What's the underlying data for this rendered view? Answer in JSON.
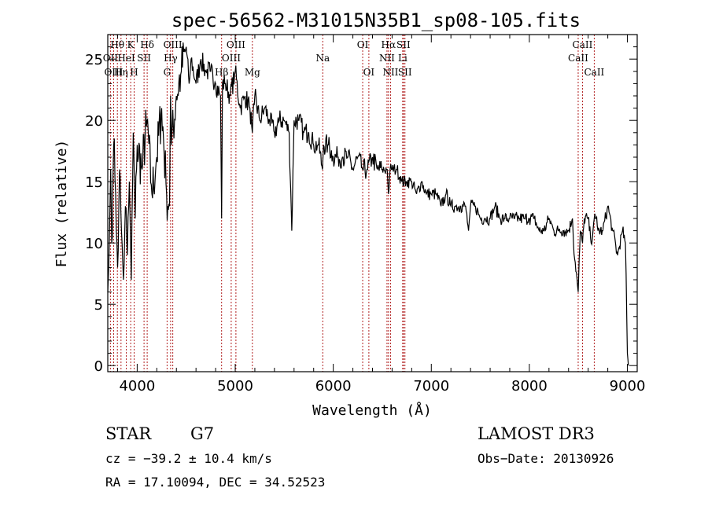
{
  "chart_data": {
    "type": "line",
    "title": "spec-56562-M31015N35B1_sp08-105.fits",
    "xlabel": "Wavelength (Å)",
    "ylabel": "Flux (relative)",
    "xlim": [
      3700,
      9100
    ],
    "ylim": [
      -0.5,
      27
    ],
    "xticks": [
      4000,
      5000,
      6000,
      7000,
      8000,
      9000
    ],
    "yticks": [
      0,
      5,
      10,
      15,
      20,
      25
    ],
    "series": [
      {
        "name": "flux",
        "x": [
          3700,
          3710,
          3720,
          3730,
          3740,
          3760,
          3780,
          3800,
          3820,
          3840,
          3860,
          3880,
          3900,
          3920,
          3940,
          3960,
          3980,
          4000,
          4050,
          4100,
          4150,
          4200,
          4250,
          4300,
          4330,
          4340,
          4350,
          4400,
          4450,
          4500,
          4530,
          4550,
          4600,
          4650,
          4700,
          4750,
          4800,
          4850,
          4861,
          4870,
          4900,
          4950,
          5000,
          5050,
          5100,
          5150,
          5175,
          5200,
          5250,
          5300,
          5350,
          5400,
          5450,
          5500,
          5550,
          5577,
          5600,
          5650,
          5700,
          5750,
          5800,
          5850,
          5890,
          5900,
          5950,
          6000,
          6050,
          6100,
          6150,
          6200,
          6250,
          6300,
          6350,
          6400,
          6450,
          6500,
          6550,
          6563,
          6580,
          6600,
          6650,
          6700,
          6750,
          6800,
          6850,
          6900,
          6950,
          7000,
          7050,
          7100,
          7150,
          7200,
          7250,
          7300,
          7350,
          7380,
          7400,
          7450,
          7500,
          7550,
          7600,
          7650,
          7700,
          7750,
          7800,
          7850,
          7900,
          7950,
          8000,
          8050,
          8100,
          8150,
          8200,
          8250,
          8300,
          8350,
          8400,
          8440,
          8450,
          8498,
          8520,
          8542,
          8560,
          8600,
          8630,
          8662,
          8680,
          8700,
          8750,
          8800,
          8850,
          8900,
          8950,
          8980,
          9000,
          9010
        ],
        "values": [
          6,
          8,
          12,
          16,
          10,
          18,
          14,
          8,
          16,
          11,
          7,
          13,
          9,
          15,
          7,
          19,
          12,
          18,
          16,
          20,
          14,
          17,
          21,
          14,
          13,
          22,
          18,
          22,
          24,
          26,
          23,
          25,
          23,
          25,
          24,
          24,
          23,
          22,
          12,
          23,
          23,
          22,
          24,
          21,
          22,
          21,
          19,
          22,
          20,
          21,
          20,
          19,
          20,
          20,
          19,
          11,
          20,
          20,
          19,
          19,
          18,
          18,
          16,
          18,
          18,
          17,
          17,
          17,
          17,
          16,
          17,
          16,
          16,
          17,
          16,
          16,
          16,
          14,
          16,
          16,
          16,
          15,
          15,
          15,
          14,
          15,
          14,
          14,
          14,
          13,
          14,
          13,
          13,
          13,
          13,
          11,
          13,
          13,
          12,
          12,
          12,
          13,
          12,
          12,
          12,
          12,
          12,
          12,
          12,
          12,
          11,
          11,
          12,
          11,
          11,
          11,
          11,
          12,
          10,
          6,
          11,
          10,
          12,
          12,
          10,
          12,
          12,
          11,
          11,
          13,
          11,
          9,
          11,
          10,
          1,
          0
        ]
      }
    ],
    "lines": [
      {
        "name": "Hθ",
        "w": 3798,
        "row": 0
      },
      {
        "name": "OII",
        "w": 3727,
        "row": 1
      },
      {
        "name": "OIII",
        "w": 3760,
        "row": 2
      },
      {
        "name": "K",
        "w": 3934,
        "row": 0
      },
      {
        "name": "HeI",
        "w": 3889,
        "row": 1
      },
      {
        "name": "Hη",
        "w": 3835,
        "row": 2
      },
      {
        "name": "SII",
        "w": 4070,
        "row": 1
      },
      {
        "name": "H",
        "w": 3969,
        "row": 2
      },
      {
        "name": "Hδ",
        "w": 4102,
        "row": 0
      },
      {
        "name": "OIII",
        "w": 4363,
        "row": 0
      },
      {
        "name": "Hγ",
        "w": 4341,
        "row": 1
      },
      {
        "name": "G",
        "w": 4305,
        "row": 2
      },
      {
        "name": "OIII",
        "w": 5007,
        "row": 0
      },
      {
        "name": "OIII",
        "w": 4959,
        "row": 1
      },
      {
        "name": "Hβ",
        "w": 4861,
        "row": 2
      },
      {
        "name": "Mg",
        "w": 5175,
        "row": 2
      },
      {
        "name": "Na",
        "w": 5893,
        "row": 1
      },
      {
        "name": "OI",
        "w": 6300,
        "row": 0
      },
      {
        "name": "OI",
        "w": 6363,
        "row": 2
      },
      {
        "name": "Hα",
        "w": 6563,
        "row": 0
      },
      {
        "name": "SII",
        "w": 6716,
        "row": 0
      },
      {
        "name": "NII",
        "w": 6548,
        "row": 1
      },
      {
        "name": "Li",
        "w": 6708,
        "row": 1
      },
      {
        "name": "NII",
        "w": 6584,
        "row": 2
      },
      {
        "name": "SII",
        "w": 6731,
        "row": 2
      },
      {
        "name": "CaII",
        "w": 8542,
        "row": 0
      },
      {
        "name": "CaII",
        "w": 8498,
        "row": 1
      },
      {
        "name": "CaII",
        "w": 8662,
        "row": 2
      }
    ]
  },
  "info": {
    "object_class": "STAR",
    "subclass": "G7",
    "survey": "LAMOST DR3",
    "cz": "cz = −39.2 ± 10.4 km/s",
    "obs_date": "Obs−Date: 20130926",
    "coords": "RA =  17.10094, DEC =  34.52523"
  },
  "colors": {
    "spectrum": "#000000",
    "line_markers": "#b22222",
    "axes": "#000000"
  }
}
